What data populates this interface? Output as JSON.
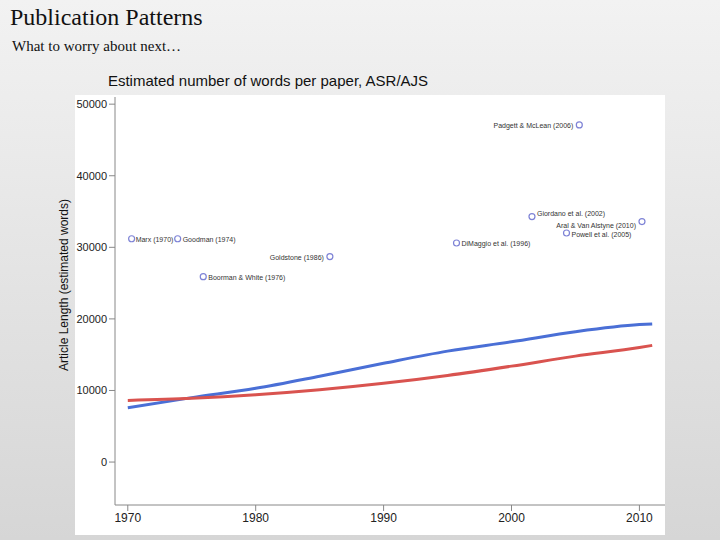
{
  "slide": {
    "title": "Publication Patterns",
    "subtitle": "What to worry about next…"
  },
  "chart_data": {
    "type": "line",
    "title": "Estimated number of words per paper, ASR/AJS",
    "y_label": "Article Length (estimated words)",
    "x": [
      1970,
      1975,
      1980,
      1985,
      1990,
      1995,
      2000,
      2005,
      2010,
      2011
    ],
    "series": [
      {
        "color": "#4a6fd6",
        "values": [
          7600,
          9000,
          10300,
          12000,
          13800,
          15500,
          16800,
          18200,
          19200,
          19300
        ]
      },
      {
        "color": "#d9534f",
        "values": [
          8600,
          8900,
          9400,
          10100,
          11000,
          12100,
          13400,
          14800,
          16000,
          16300
        ]
      }
    ],
    "xlim": [
      1969,
      2012
    ],
    "xticks": [
      1970,
      1980,
      1990,
      2000,
      2010
    ],
    "ylim": [
      -6000,
      51000
    ],
    "yticks": [
      0,
      10000,
      20000,
      30000,
      40000,
      50000
    ],
    "grid": false,
    "annotations": {
      "marker": "open_circle",
      "color": "#7e83d6",
      "points": [
        {
          "x": 2005.3,
          "y": 47100,
          "label": "Padgett & McLean (2006)"
        },
        {
          "x": 2001.6,
          "y": 34300,
          "label": "Giordano et al. (2002)"
        },
        {
          "x": 2010.2,
          "y": 33600,
          "label": "Aral & Van Alstyne (2010)"
        },
        {
          "x": 2004.3,
          "y": 32000,
          "label": "Powell et al. (2005)"
        },
        {
          "x": 1995.7,
          "y": 30600,
          "label": "DiMaggio et al. (1996)"
        },
        {
          "x": 1985.8,
          "y": 28700,
          "label": "Goldstone (1986)"
        },
        {
          "x": 1970.3,
          "y": 31200,
          "label": "Marx (1970)"
        },
        {
          "x": 1973.9,
          "y": 31200,
          "label": "Goodman (1974)"
        },
        {
          "x": 1975.9,
          "y": 25900,
          "label": "Boorman & White (1976)"
        }
      ]
    }
  }
}
